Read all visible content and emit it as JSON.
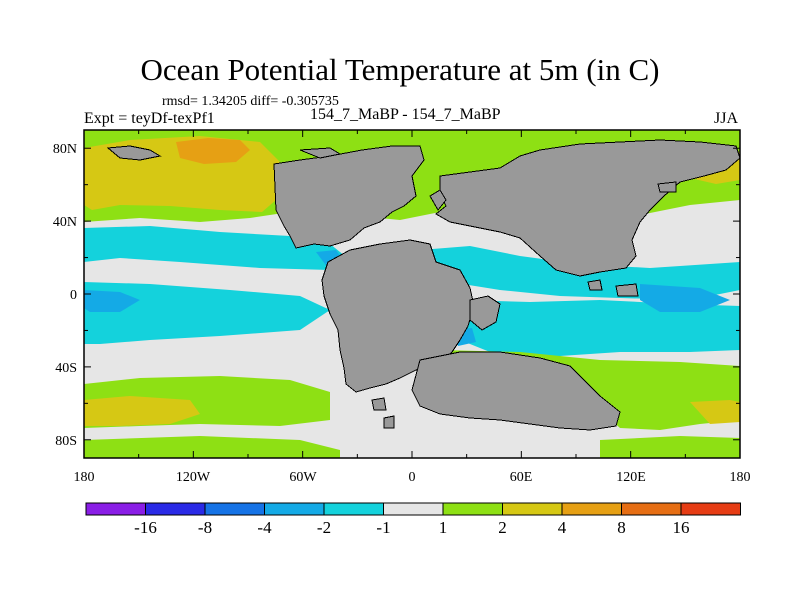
{
  "title": "Ocean Potential Temperature at 5m (in C)",
  "stats_line": "rmsd= 1.34205 diff= -0.305735",
  "expt_line": "Expt = teyDf-texPf1",
  "runs_line": "154_7_MaBP - 154_7_MaBP",
  "season": "JJA",
  "axes": {
    "x_ticks": [
      "180",
      "120W",
      "60W",
      "0",
      "60E",
      "120E",
      "180"
    ],
    "y_ticks": [
      "80N",
      "40N",
      "0",
      "40S",
      "80S"
    ]
  },
  "colorbar": {
    "labels": [
      "-16",
      "-8",
      "-4",
      "-2",
      "-1",
      "1",
      "2",
      "4",
      "8",
      "16"
    ],
    "colors": [
      "#8a1ee6",
      "#2a2ae6",
      "#1673e6",
      "#14aae6",
      "#14d2dc",
      "#e6e6e6",
      "#8ee014",
      "#d6c814",
      "#e6a014",
      "#e66e14",
      "#e63c14"
    ]
  },
  "palette": {
    "land": "#999999",
    "near_zero": "#e6e6e6",
    "cool_1": "#14d2dc",
    "cool_2": "#14aae6",
    "warm_1": "#8ee014",
    "warm_2": "#d6c814",
    "warm_3": "#e6a014"
  }
}
